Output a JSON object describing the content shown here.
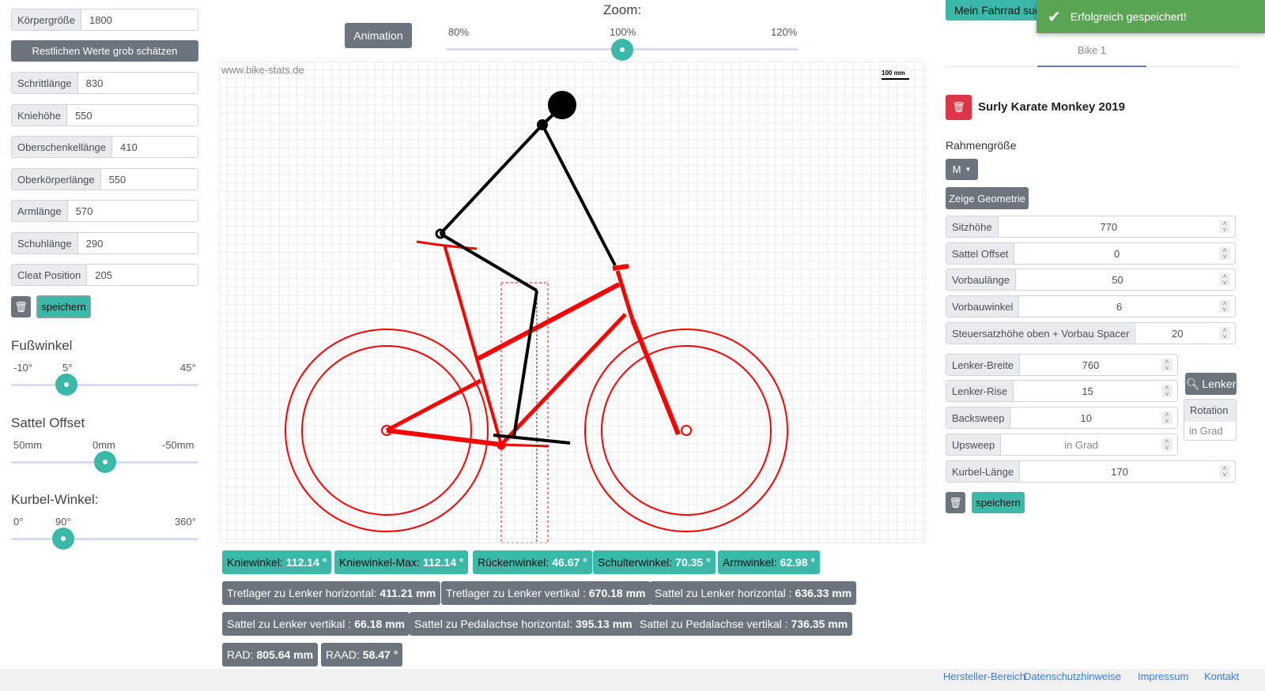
{
  "left": {
    "fields": [
      {
        "label": "Körpergröße",
        "value": "1800"
      },
      {
        "label": "Schrittlänge",
        "value": "830"
      },
      {
        "label": "Kniehöhe",
        "value": "550"
      },
      {
        "label": "Oberschenkellänge",
        "value": "410"
      },
      {
        "label": "Oberkörperlänge",
        "value": "550"
      },
      {
        "label": "Armlänge",
        "value": "570"
      },
      {
        "label": "Schuhlänge",
        "value": "290"
      },
      {
        "label": "Cleat Position",
        "value": "205"
      }
    ],
    "estimate_label": "Restlichen Werte grob schätzen",
    "save_label": "speichern",
    "sliders": [
      {
        "title": "Fußwinkel",
        "ticks": [
          "-10°",
          "5°",
          "45°"
        ],
        "value": 5
      },
      {
        "title": "Sattel Offset",
        "ticks": [
          "50mm",
          "0mm",
          "-50mm"
        ],
        "value": 0
      },
      {
        "title": "Kurbel-Winkel:",
        "ticks": [
          "0°",
          "90°",
          "360°"
        ],
        "value": 90
      }
    ]
  },
  "center": {
    "animation_label": "Animation",
    "zoom": {
      "title": "Zoom:",
      "ticks": [
        "80%",
        "100%",
        "120%"
      ],
      "value": 100
    },
    "watermark": "www.bike-stats.de",
    "scale_label": "100 mm",
    "angles": [
      {
        "label": "Kniewinkel:",
        "value": "112.14 °"
      },
      {
        "label": "Kniewinkel-Max:",
        "value": "112.14 °"
      },
      {
        "label": "Rückenwinkel:",
        "value": "46.67 °"
      },
      {
        "label": "Schulterwinkel:",
        "value": "70.35 °"
      },
      {
        "label": "Armwinkel:",
        "value": "62.98 °"
      }
    ],
    "measures": [
      {
        "label": "Tretlager zu Lenker horizontal:",
        "value": "411.21 mm"
      },
      {
        "label": "Tretlager zu Lenker vertikal :",
        "value": "670.18 mm"
      },
      {
        "label": "Sattel zu Lenker horizontal :",
        "value": "636.33 mm"
      },
      {
        "label": "Sattel zu Lenker vertikal :",
        "value": "66.18 mm"
      },
      {
        "label": "Sattel zu Pedalachse horizontal:",
        "value": "395.13 mm"
      },
      {
        "label": "Sattel zu Pedalachse vertikal :",
        "value": "736.35 mm"
      },
      {
        "label": "RAD:",
        "value": "805.64 mm"
      },
      {
        "label": "RAAD:",
        "value": "58.47 °"
      }
    ]
  },
  "right": {
    "search_label": "Mein Fahrrad suc",
    "toast": "Erfolgreich gespeichert!",
    "tab": "Bike 1",
    "bike_name": "Surly Karate Monkey 2019",
    "frame_size_label": "Rahmengröße",
    "frame_size": "M",
    "geometry_label": "Zeige Geometrie",
    "fields": [
      {
        "label": "Sitzhöhe",
        "value": "770"
      },
      {
        "label": "Sattel Offset",
        "value": "0"
      },
      {
        "label": "Vorbaulänge",
        "value": "50"
      },
      {
        "label": "Vorbauwinkel",
        "value": "6"
      },
      {
        "label": "Steuersatzhöhe oben + Vorbau Spacer",
        "value": "20"
      }
    ],
    "bar_fields": [
      {
        "label": "Lenker-Breite",
        "value": "760"
      },
      {
        "label": "Lenker-Rise",
        "value": "15"
      },
      {
        "label": "Backsweep",
        "value": "10"
      },
      {
        "label": "Upsweep",
        "placeholder": "in Grad"
      }
    ],
    "lenker_label": "Lenker",
    "rotation_label": "Rotation",
    "rotation_placeholder": "in Grad",
    "crank": {
      "label": "Kurbel-Länge",
      "value": "170"
    },
    "save_label": "speichern"
  },
  "footer": {
    "links": [
      "Hersteller-Bereich",
      "Datenschutzhinweise",
      "Impressum",
      "Kontakt"
    ]
  },
  "colors": {
    "accent": "#3bb9a8",
    "toast": "#5aa554",
    "danger": "#dc3545",
    "bike": "#ff0000"
  }
}
